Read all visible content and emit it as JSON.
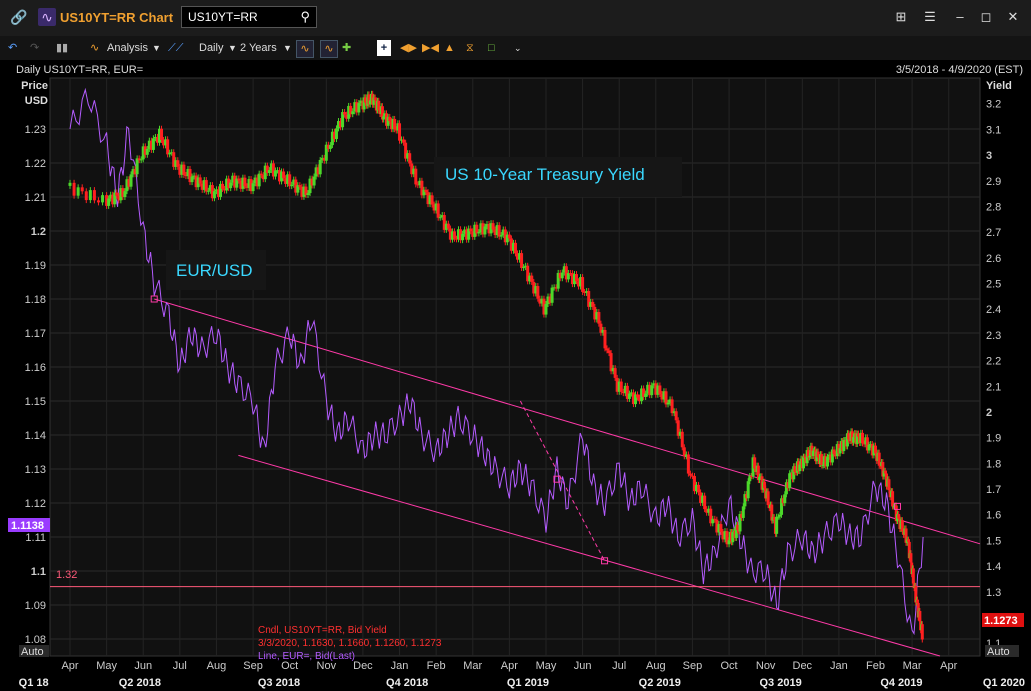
{
  "window": {
    "title": "US10YT=RR Chart",
    "search_value": "US10YT=RR",
    "icons": [
      "link-icon",
      "chart-app-icon",
      "search-icon",
      "layout-icon",
      "menu-icon",
      "minimize-icon",
      "maximize-icon",
      "close-icon"
    ]
  },
  "toolbar": {
    "analysis_label": "Analysis",
    "interval_label": "Daily",
    "range_label": "2 Years"
  },
  "chart_header": {
    "left": "Daily US10YT=RR, EUR=",
    "right": "3/5/2018 - 4/9/2020 (EST)"
  },
  "annotations": {
    "yield_label": "US 10-Year Treasury Yield",
    "eur_label": "EUR/USD",
    "left_marker": "1.1138",
    "right_marker": "1.1273",
    "hline_label": "1.32",
    "auto_left": "Auto",
    "auto_right": "Auto",
    "legend_line1": "Cndl, US10YT=RR, Bid Yield",
    "legend_line2": "3/3/2020, 1.1630, 1.1660, 1.1260, 1.1273",
    "legend_line3": "Line, EUR=, Bid(Last)"
  },
  "chart_data": {
    "type": "line",
    "left_axis": {
      "label": "Price USD",
      "ticks": [
        1.08,
        1.09,
        1.1,
        1.11,
        1.12,
        1.13,
        1.14,
        1.15,
        1.16,
        1.17,
        1.18,
        1.19,
        1.2,
        1.21,
        1.22,
        1.23
      ],
      "range": [
        1.075,
        1.245
      ]
    },
    "right_axis": {
      "label": "Yield",
      "ticks": [
        1.1,
        1.2,
        1.3,
        1.4,
        1.5,
        1.6,
        1.7,
        1.8,
        1.9,
        2,
        2.1,
        2.2,
        2.3,
        2.4,
        2.5,
        2.6,
        2.7,
        2.8,
        2.9,
        3,
        3.1,
        3.2
      ],
      "range": [
        1.05,
        3.3
      ]
    },
    "x_months": [
      "Apr",
      "May",
      "Jun",
      "Jul",
      "Aug",
      "Sep",
      "Oct",
      "Nov",
      "Dec",
      "Jan",
      "Feb",
      "Mar",
      "Apr",
      "May",
      "Jun",
      "Jul",
      "Aug",
      "Sep",
      "Oct",
      "Nov",
      "Dec",
      "Jan",
      "Feb",
      "Mar",
      "Apr"
    ],
    "x_quarters": [
      "Q1 18",
      "Q2 2018",
      "Q3 2018",
      "Q4 2018",
      "Q1 2019",
      "Q2 2019",
      "Q3 2019",
      "Q4 2019",
      "Q1 2020"
    ],
    "series": [
      {
        "name": "US10YT=RR",
        "axis": "right",
        "kind": "candle",
        "x": [
          0,
          1,
          1.5,
          2,
          2.5,
          3,
          3.5,
          4,
          4.5,
          5,
          5.5,
          6,
          6.5,
          7,
          7.5,
          8,
          8.3,
          8.6,
          9,
          9.5,
          10,
          10.5,
          11,
          11.5,
          12,
          12.5,
          13,
          13.5,
          14,
          14.5,
          15,
          15.5,
          16,
          16.5,
          17,
          17.5,
          18,
          18.3,
          18.7,
          19,
          19.3,
          19.7,
          20,
          20.3,
          20.6,
          21,
          21.3,
          21.6,
          22,
          22.3,
          22.6,
          22.9,
          23.1,
          23.3
        ],
        "values": [
          2.88,
          2.82,
          2.85,
          3.0,
          3.08,
          2.95,
          2.9,
          2.85,
          2.9,
          2.88,
          2.95,
          2.9,
          2.85,
          3.0,
          3.15,
          3.2,
          3.22,
          3.15,
          3.1,
          2.9,
          2.8,
          2.68,
          2.7,
          2.72,
          2.68,
          2.55,
          2.4,
          2.55,
          2.5,
          2.35,
          2.1,
          2.05,
          2.1,
          2.02,
          1.75,
          1.6,
          1.5,
          1.55,
          1.8,
          1.7,
          1.55,
          1.75,
          1.8,
          1.85,
          1.8,
          1.85,
          1.9,
          1.9,
          1.85,
          1.75,
          1.6,
          1.5,
          1.3,
          1.13
        ]
      },
      {
        "name": "EUR=",
        "axis": "left",
        "kind": "line",
        "x": [
          0,
          0.5,
          1,
          1.3,
          1.6,
          2,
          2.3,
          2.7,
          3,
          3.3,
          3.6,
          4,
          4.3,
          4.6,
          5,
          5.3,
          5.6,
          6,
          6.3,
          6.6,
          7,
          7.3,
          7.6,
          8,
          8.3,
          8.6,
          9,
          9.3,
          9.6,
          10,
          10.3,
          10.6,
          11,
          11.3,
          11.6,
          12,
          12.3,
          12.6,
          13,
          13.3,
          13.6,
          14,
          14.3,
          14.6,
          15,
          15.3,
          15.6,
          16,
          16.3,
          16.6,
          17,
          17.3,
          17.6,
          18,
          18.3,
          18.6,
          19,
          19.3,
          19.6,
          20,
          20.3,
          20.6,
          21,
          21.3,
          21.6,
          22,
          22.3,
          22.6,
          23,
          23.3
        ],
        "values": [
          1.23,
          1.24,
          1.225,
          1.21,
          1.23,
          1.2,
          1.185,
          1.175,
          1.16,
          1.17,
          1.165,
          1.17,
          1.16,
          1.155,
          1.15,
          1.135,
          1.16,
          1.17,
          1.16,
          1.175,
          1.15,
          1.14,
          1.145,
          1.135,
          1.14,
          1.14,
          1.145,
          1.15,
          1.14,
          1.135,
          1.14,
          1.145,
          1.14,
          1.135,
          1.13,
          1.125,
          1.13,
          1.125,
          1.115,
          1.13,
          1.12,
          1.14,
          1.125,
          1.12,
          1.13,
          1.12,
          1.125,
          1.115,
          1.12,
          1.11,
          1.115,
          1.1,
          1.105,
          1.12,
          1.11,
          1.1,
          1.1,
          1.09,
          1.105,
          1.11,
          1.105,
          1.11,
          1.115,
          1.11,
          1.11,
          1.125,
          1.12,
          1.105,
          1.08,
          1.11
        ]
      }
    ],
    "hline_yield": 1.32,
    "grid": true
  }
}
